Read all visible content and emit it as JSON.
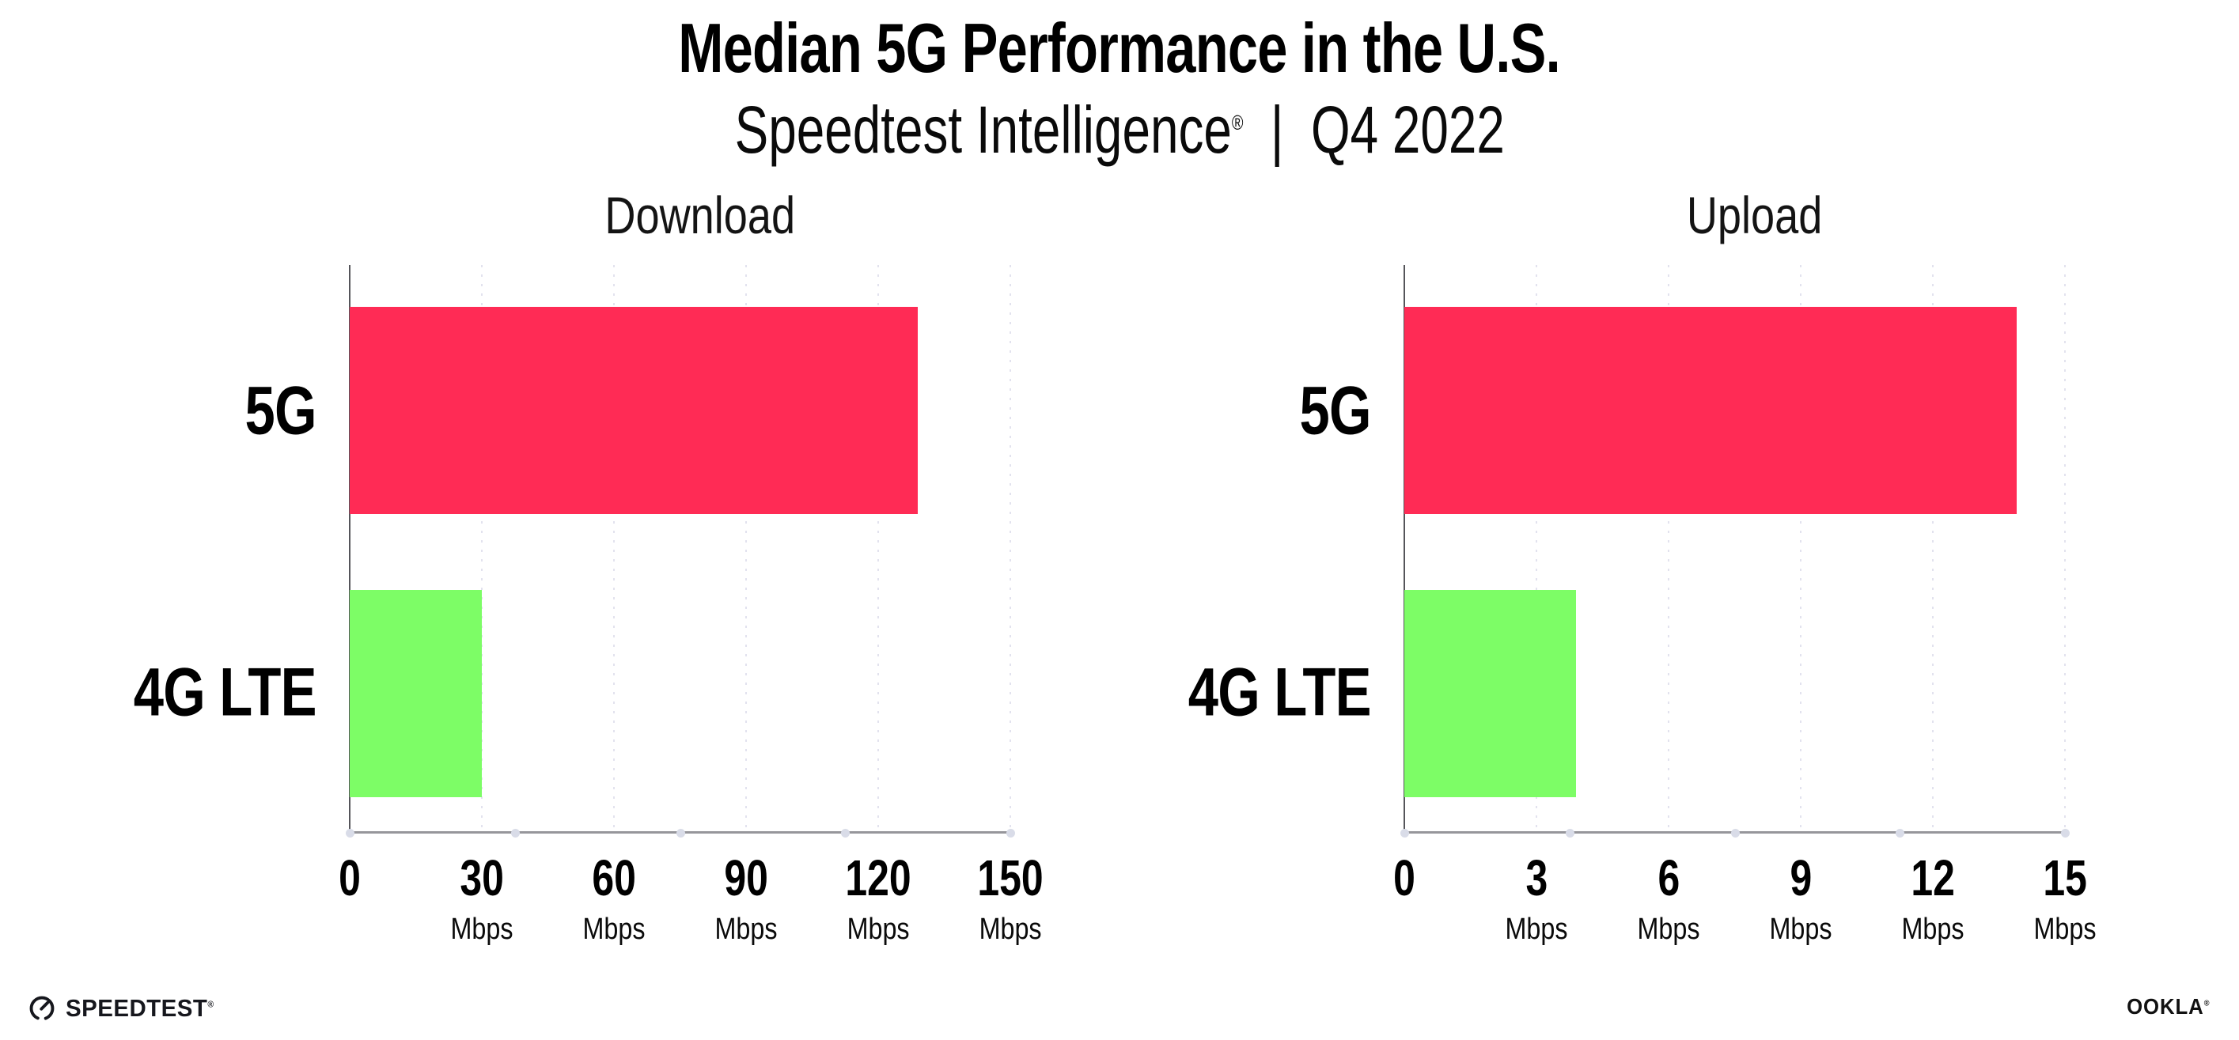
{
  "page": {
    "title": "Median 5G Performance in the U.S.",
    "subtitle": {
      "brand": "Speedtest Intelligence",
      "registered_mark": "®",
      "divider": "|",
      "period": "Q4 2022"
    }
  },
  "chart_data": [
    {
      "type": "bar",
      "orientation": "horizontal",
      "title": "Download",
      "categories": [
        "5G",
        "4G LTE"
      ],
      "values": [
        129,
        30
      ],
      "unit": "Mbps",
      "xlim": [
        0,
        150
      ],
      "xticks": [
        0,
        30,
        60,
        90,
        120,
        150
      ],
      "grid": "vertical dotted",
      "legend": "none",
      "series_colors": [
        "#ff2b55",
        "#7dfd66"
      ]
    },
    {
      "type": "bar",
      "orientation": "horizontal",
      "title": "Upload",
      "categories": [
        "5G",
        "4G LTE"
      ],
      "values": [
        13.9,
        3.9
      ],
      "unit": "Mbps",
      "xlim": [
        0,
        15
      ],
      "xticks": [
        0,
        3,
        6,
        9,
        12,
        15
      ],
      "grid": "vertical dotted",
      "legend": "none",
      "series_colors": [
        "#ff2b55",
        "#7dfd66"
      ]
    }
  ],
  "footer": {
    "speedtest_wordmark": "SPEEDTEST",
    "speedtest_mark": "®",
    "ookla_wordmark": "OOKLA",
    "ookla_mark": "®"
  },
  "colors": {
    "bar_5g": "#ff2b55",
    "bar_4g_lte": "#7dfd66",
    "y_axis": "#55555a",
    "x_axis": "#96969b",
    "gridline_dots": "#e2e2ee",
    "axis_tick_dot": "#d9dce8",
    "text": "#000000"
  }
}
